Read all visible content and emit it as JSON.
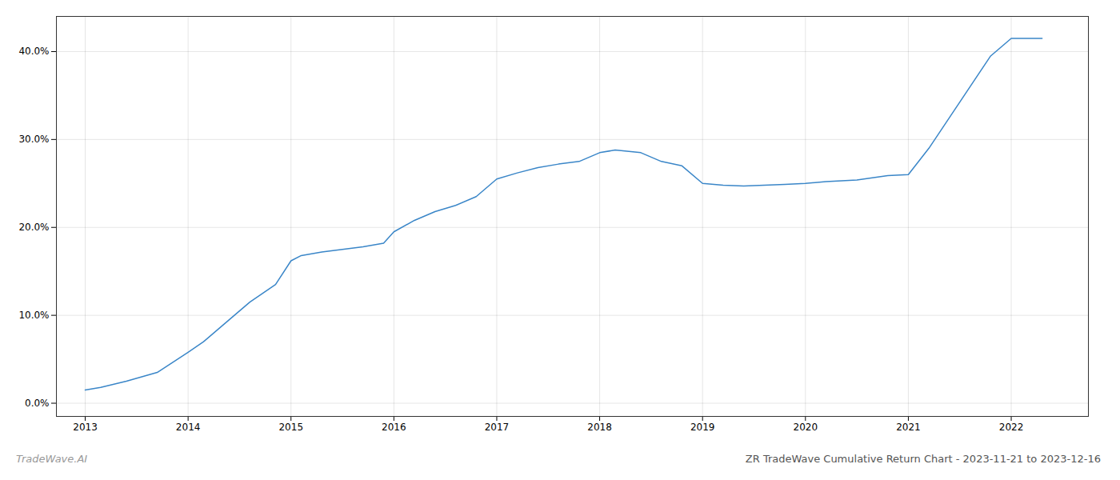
{
  "chart_data": {
    "type": "line",
    "title": "ZR TradeWave Cumulative Return Chart - 2023-11-21 to 2023-12-16",
    "annotations": [
      "TradeWave.AI"
    ],
    "x": [
      2013.0,
      2013.15,
      2013.4,
      2013.7,
      2014.0,
      2014.15,
      2014.4,
      2014.6,
      2014.85,
      2015.0,
      2015.1,
      2015.3,
      2015.5,
      2015.7,
      2015.9,
      2016.0,
      2016.2,
      2016.4,
      2016.6,
      2016.8,
      2017.0,
      2017.2,
      2017.4,
      2017.6,
      2017.8,
      2018.0,
      2018.15,
      2018.4,
      2018.6,
      2018.8,
      2019.0,
      2019.2,
      2019.4,
      2019.6,
      2019.8,
      2020.0,
      2020.2,
      2020.5,
      2020.8,
      2021.0,
      2021.2,
      2021.4,
      2021.6,
      2021.8,
      2022.0,
      2022.3
    ],
    "values": [
      1.5,
      1.8,
      2.5,
      3.5,
      5.8,
      7.0,
      9.5,
      11.5,
      13.5,
      16.2,
      16.8,
      17.2,
      17.5,
      17.8,
      18.2,
      19.5,
      20.8,
      21.8,
      22.5,
      23.5,
      25.5,
      26.2,
      26.8,
      27.2,
      27.5,
      28.5,
      28.8,
      28.5,
      27.5,
      27.0,
      25.0,
      24.8,
      24.7,
      24.8,
      24.9,
      25.0,
      25.2,
      25.4,
      25.9,
      26.0,
      29.0,
      32.5,
      36.0,
      39.5,
      41.5,
      41.5
    ],
    "color": "#3a86c8",
    "xlim": [
      2012.72,
      2022.75
    ],
    "xticks": [
      2013,
      2014,
      2015,
      2016,
      2017,
      2018,
      2019,
      2020,
      2021,
      2022
    ],
    "ylim": [
      -1.5,
      44
    ],
    "yticks": [
      {
        "value": 0,
        "label": "0.0%"
      },
      {
        "value": 10,
        "label": "10.0%"
      },
      {
        "value": 20,
        "label": "20.0%"
      },
      {
        "value": 30,
        "label": "30.0%"
      },
      {
        "value": 40,
        "label": "40.0%"
      }
    ],
    "grid": true
  }
}
